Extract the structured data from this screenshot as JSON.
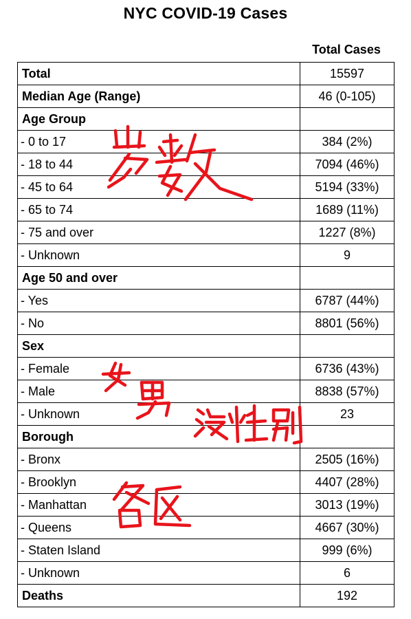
{
  "title": "NYC COVID-19 Cases",
  "column_header": "Total Cases",
  "rows": [
    {
      "label": "Total",
      "value": "15597",
      "kind": "bold"
    },
    {
      "label": "Median Age (Range)",
      "value": "46 (0-105)",
      "kind": "bold"
    },
    {
      "label": "Age Group",
      "value": "",
      "kind": "bold"
    },
    {
      "label": "- 0 to 17",
      "value": "384 (2%)",
      "kind": "sub"
    },
    {
      "label": "- 18 to 44",
      "value": "7094 (46%)",
      "kind": "sub"
    },
    {
      "label": "- 45 to 64",
      "value": "5194 (33%)",
      "kind": "sub"
    },
    {
      "label": "- 65 to 74",
      "value": "1689 (11%)",
      "kind": "sub"
    },
    {
      "label": "- 75 and over",
      "value": "1227 (8%)",
      "kind": "sub"
    },
    {
      "label": "- Unknown",
      "value": "9",
      "kind": "sub"
    },
    {
      "label": "Age 50 and over",
      "value": "",
      "kind": "bold"
    },
    {
      "label": "- Yes",
      "value": "6787 (44%)",
      "kind": "sub"
    },
    {
      "label": "- No",
      "value": "8801 (56%)",
      "kind": "sub"
    },
    {
      "label": "Sex",
      "value": "",
      "kind": "bold"
    },
    {
      "label": "- Female",
      "value": "6736 (43%)",
      "kind": "sub"
    },
    {
      "label": "- Male",
      "value": "8838 (57%)",
      "kind": "sub"
    },
    {
      "label": "- Unknown",
      "value": "23",
      "kind": "sub"
    },
    {
      "label": "Borough",
      "value": "",
      "kind": "bold"
    },
    {
      "label": "- Bronx",
      "value": "2505 (16%)",
      "kind": "sub"
    },
    {
      "label": "- Brooklyn",
      "value": "4407 (28%)",
      "kind": "sub"
    },
    {
      "label": "- Manhattan",
      "value": "3013 (19%)",
      "kind": "sub"
    },
    {
      "label": "- Queens",
      "value": "4667 (30%)",
      "kind": "sub"
    },
    {
      "label": "- Staten Island",
      "value": "999 (6%)",
      "kind": "sub"
    },
    {
      "label": "- Unknown",
      "value": "6",
      "kind": "sub"
    },
    {
      "label": "Deaths",
      "value": "192",
      "kind": "bold"
    }
  ],
  "handwritten_notes": [
    {
      "text": "岁数",
      "meaning": "age"
    },
    {
      "text": "女",
      "meaning": "female"
    },
    {
      "text": "男",
      "meaning": "male"
    },
    {
      "text": "没性别",
      "meaning": "no sex"
    },
    {
      "text": "各区",
      "meaning": "each borough"
    }
  ],
  "annotation_color": "#e8141b"
}
